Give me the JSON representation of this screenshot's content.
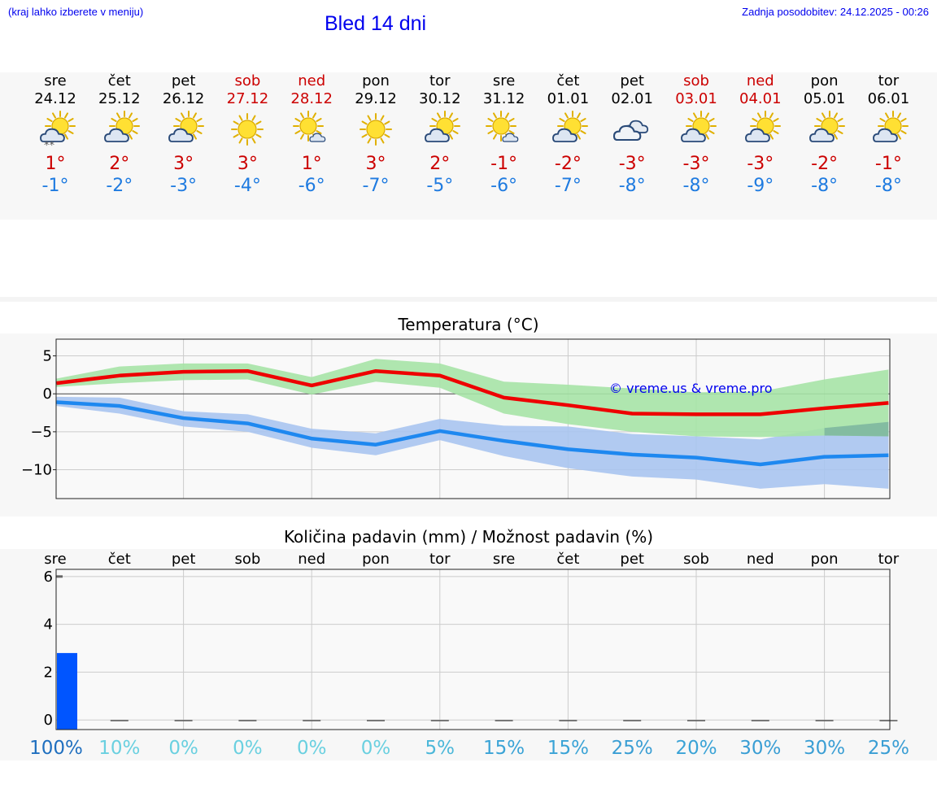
{
  "header": {
    "hint": "(kraj lahko izberete v meniju)",
    "title": "Bled 14 dni",
    "updated": "Zadnja posodobitev: 24.12.2025 - 00:26"
  },
  "days": [
    {
      "name": "sre",
      "date": "24.12",
      "weekend": false,
      "icon": "partly-cloudy-snow-icon",
      "tmax": "1°",
      "tmin": "-1°"
    },
    {
      "name": "čet",
      "date": "25.12",
      "weekend": false,
      "icon": "partly-cloudy-icon",
      "tmax": "2°",
      "tmin": "-2°"
    },
    {
      "name": "pet",
      "date": "26.12",
      "weekend": false,
      "icon": "partly-cloudy-icon",
      "tmax": "3°",
      "tmin": "-3°"
    },
    {
      "name": "sob",
      "date": "27.12",
      "weekend": true,
      "icon": "sunny-icon",
      "tmax": "3°",
      "tmin": "-4°"
    },
    {
      "name": "ned",
      "date": "28.12",
      "weekend": true,
      "icon": "sun-small-cloud-icon",
      "tmax": "1°",
      "tmin": "-6°"
    },
    {
      "name": "pon",
      "date": "29.12",
      "weekend": false,
      "icon": "sunny-icon",
      "tmax": "3°",
      "tmin": "-7°"
    },
    {
      "name": "tor",
      "date": "30.12",
      "weekend": false,
      "icon": "partly-cloudy-icon",
      "tmax": "2°",
      "tmin": "-5°"
    },
    {
      "name": "sre",
      "date": "31.12",
      "weekend": false,
      "icon": "sun-small-cloud-icon",
      "tmax": "-1°",
      "tmin": "-6°"
    },
    {
      "name": "čet",
      "date": "01.01",
      "weekend": false,
      "icon": "partly-cloudy-icon",
      "tmax": "-2°",
      "tmin": "-7°"
    },
    {
      "name": "pet",
      "date": "02.01",
      "weekend": false,
      "icon": "cloudy-icon",
      "tmax": "-3°",
      "tmin": "-8°"
    },
    {
      "name": "sob",
      "date": "03.01",
      "weekend": true,
      "icon": "partly-cloudy-icon",
      "tmax": "-3°",
      "tmin": "-8°"
    },
    {
      "name": "ned",
      "date": "04.01",
      "weekend": true,
      "icon": "partly-cloudy-icon",
      "tmax": "-3°",
      "tmin": "-9°"
    },
    {
      "name": "pon",
      "date": "05.01",
      "weekend": false,
      "icon": "partly-cloudy-icon",
      "tmax": "-2°",
      "tmin": "-8°"
    },
    {
      "name": "tor",
      "date": "06.01",
      "weekend": false,
      "icon": "partly-cloudy-icon",
      "tmax": "-1°",
      "tmin": "-8°"
    }
  ],
  "colors": {
    "max_line": "#ee0000",
    "max_band": "#a6e3a6",
    "min_line": "#1e88f0",
    "min_band": "#a8c4f0",
    "overlap_band": "#7fb8a0",
    "bar": "#0055ff",
    "weekend": "#cc0000",
    "link": "#0000ee"
  },
  "chart_data": [
    {
      "type": "line",
      "title": "Temperatura (°C)",
      "watermark": "© vreme.us & vreme.pro",
      "x_days": [
        "24.12",
        "25.12",
        "26.12",
        "27.12",
        "28.12",
        "29.12",
        "30.12",
        "31.12",
        "01.01",
        "02.01",
        "03.01",
        "04.01",
        "05.01",
        "06.01"
      ],
      "x": [
        0,
        1,
        2,
        3,
        4,
        5,
        6,
        7,
        8,
        9,
        10,
        11,
        12,
        13
      ],
      "ylim": [
        -13.8,
        7.2
      ],
      "yticks": [
        5,
        0,
        -5,
        -10
      ],
      "ytick_labels": [
        "5",
        "0",
        "−5",
        "−10"
      ],
      "series": [
        {
          "name": "max",
          "values": [
            1.4,
            2.4,
            2.9,
            3.0,
            1.1,
            3.0,
            2.4,
            -0.5,
            -1.5,
            -2.6,
            -2.7,
            -2.7,
            -1.9,
            -1.2
          ],
          "band_upper": [
            2.0,
            3.6,
            4.0,
            4.0,
            2.2,
            4.6,
            4.0,
            1.6,
            1.2,
            0.7,
            0.2,
            0.3,
            1.9,
            3.2
          ],
          "band_lower": [
            0.9,
            1.4,
            1.8,
            1.9,
            -0.1,
            1.6,
            0.8,
            -2.6,
            -4.0,
            -5.0,
            -5.6,
            -5.7,
            -5.5,
            -5.6
          ]
        },
        {
          "name": "min",
          "values": [
            -1.1,
            -1.6,
            -3.2,
            -3.9,
            -5.9,
            -6.7,
            -4.9,
            -6.2,
            -7.3,
            -8.0,
            -8.4,
            -9.3,
            -8.3,
            -8.1
          ],
          "band_upper": [
            -0.4,
            -0.5,
            -2.3,
            -2.7,
            -4.6,
            -5.2,
            -3.3,
            -4.2,
            -4.3,
            -5.3,
            -5.6,
            -6.0,
            -4.5,
            -3.7
          ],
          "band_lower": [
            -1.6,
            -2.6,
            -4.3,
            -5.0,
            -7.1,
            -8.1,
            -6.1,
            -8.2,
            -9.8,
            -10.9,
            -11.3,
            -12.5,
            -11.9,
            -12.5
          ]
        }
      ]
    },
    {
      "type": "bar",
      "title": "Količina padavin (mm) / Možnost padavin (%)",
      "categories": [
        "sre",
        "čet",
        "pet",
        "sob",
        "ned",
        "pon",
        "tor",
        "sre",
        "čet",
        "pet",
        "sob",
        "ned",
        "pon",
        "tor"
      ],
      "amount_mm": [
        2.8,
        0,
        0,
        0,
        0,
        0,
        0,
        0,
        0,
        0,
        0,
        0,
        0,
        0
      ],
      "probability": [
        "100%",
        "10%",
        "0%",
        "0%",
        "0%",
        "0%",
        "5%",
        "15%",
        "15%",
        "25%",
        "20%",
        "30%",
        "30%",
        "25%"
      ],
      "probability_colors": [
        "#1f6fbf",
        "#6ad0e0",
        "#6ad0e0",
        "#6ad0e0",
        "#6ad0e0",
        "#6ad0e0",
        "#4bb7d9",
        "#3aa3d6",
        "#3aa3d6",
        "#3a9ed4",
        "#3aa3d6",
        "#3a9ed4",
        "#3a9ed4",
        "#3a9ed4"
      ],
      "ylim": [
        -0.4,
        6.3
      ],
      "yticks": [
        6,
        4,
        2,
        0
      ],
      "ytick_labels": [
        "6",
        "4",
        "2",
        "0"
      ]
    }
  ]
}
